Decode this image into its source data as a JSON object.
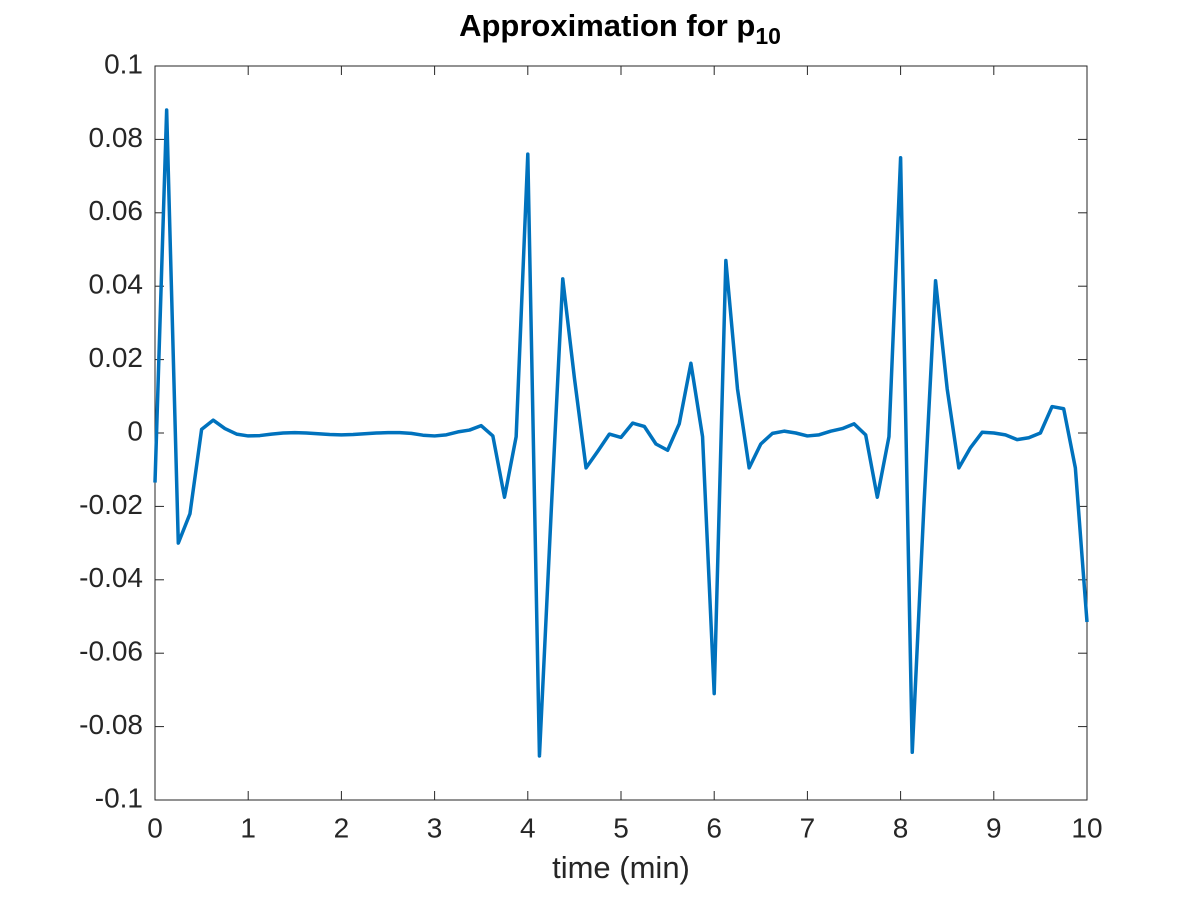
{
  "chart_data": {
    "type": "line",
    "title": "Approximation for p",
    "title_subscript": "10",
    "xlabel": "time (min)",
    "x": [
      0,
      0.125,
      0.25,
      0.375,
      0.5,
      0.625,
      0.75,
      0.875,
      1,
      1.125,
      1.25,
      1.375,
      1.5,
      1.625,
      1.75,
      1.875,
      2,
      2.125,
      2.25,
      2.375,
      2.5,
      2.625,
      2.75,
      2.875,
      3,
      3.125,
      3.25,
      3.375,
      3.5,
      3.625,
      3.75,
      3.875,
      4,
      4.125,
      4.25,
      4.375,
      4.5,
      4.625,
      4.75,
      4.875,
      5,
      5.125,
      5.25,
      5.375,
      5.5,
      5.625,
      5.75,
      5.875,
      6,
      6.125,
      6.25,
      6.375,
      6.5,
      6.625,
      6.75,
      6.875,
      7,
      7.125,
      7.25,
      7.375,
      7.5,
      7.625,
      7.75,
      7.875,
      8,
      8.125,
      8.25,
      8.375,
      8.5,
      8.625,
      8.75,
      8.875,
      9,
      9.125,
      9.25,
      9.375,
      9.5,
      9.625,
      9.75,
      9.875,
      10
    ],
    "series": [
      {
        "color": "#0072BD",
        "values": [
          -0.0135,
          0.088,
          -0.03,
          -0.022,
          0.001,
          0.0035,
          0.0012,
          -0.0003,
          -0.0008,
          -0.0007,
          -0.0003,
          0,
          0.0001,
          0,
          -0.0002,
          -0.0004,
          -0.0005,
          -0.0004,
          -0.0002,
          0,
          0.0001,
          0.0001,
          -0.0001,
          -0.0006,
          -0.0008,
          -0.0005,
          0.0003,
          0.0008,
          0.002,
          -0.0008,
          -0.0175,
          -0.001,
          0.076,
          -0.088,
          -0.022,
          0.042,
          0.015,
          -0.0095,
          -0.005,
          -0.0003,
          -0.0012,
          0.0027,
          0.0018,
          -0.003,
          -0.0047,
          0.0025,
          0.019,
          -0.001,
          -0.071,
          0.047,
          0.012,
          -0.0095,
          -0.003,
          -0.0001,
          0.0005,
          0,
          -0.0008,
          -0.0005,
          0.0005,
          0.0012,
          0.0025,
          -0.0005,
          -0.0175,
          -0.001,
          0.075,
          -0.087,
          -0.02,
          0.0415,
          0.012,
          -0.0095,
          -0.004,
          0.0002,
          0,
          -0.0005,
          -0.0018,
          -0.0013,
          0,
          0.0072,
          0.0066,
          -0.0095,
          -0.0515
        ]
      }
    ],
    "xlim": [
      0,
      10
    ],
    "xticks": [
      0,
      1,
      2,
      3,
      4,
      5,
      6,
      7,
      8,
      9,
      10
    ],
    "ylim": [
      -0.1,
      0.1
    ],
    "yticks": [
      -0.1,
      -0.08,
      -0.06,
      -0.04,
      -0.02,
      0,
      0.02,
      0.04,
      0.06,
      0.08,
      0.1
    ]
  }
}
